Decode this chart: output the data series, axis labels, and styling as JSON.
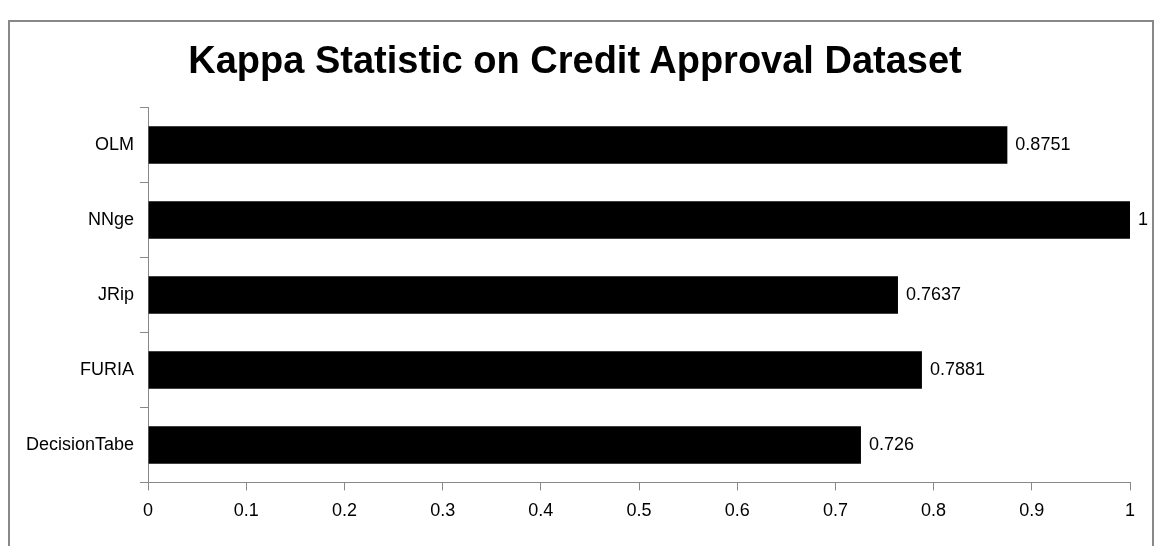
{
  "chart_data": {
    "type": "bar",
    "orientation": "horizontal",
    "title": "Kappa Statistic on Credit Approval Dataset",
    "categories": [
      "OLM",
      "NNge",
      "JRip",
      "FURIA",
      "DecisionTabe"
    ],
    "values": [
      0.8751,
      1,
      0.7637,
      0.7881,
      0.726
    ],
    "color": "#000000",
    "xlim": [
      0,
      1
    ],
    "xticks": [
      0,
      0.1,
      0.2,
      0.3,
      0.4,
      0.5,
      0.6,
      0.7,
      0.8,
      0.9,
      1
    ],
    "grid": false,
    "legend": false,
    "data_labels": true
  }
}
